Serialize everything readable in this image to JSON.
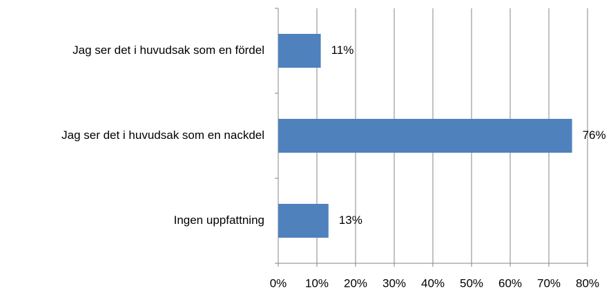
{
  "chart_data": {
    "type": "barh",
    "categories": [
      "Jag ser det i huvudsak som en fördel",
      "Jag ser det i huvudsak som en nackdel",
      "Ingen uppfattning"
    ],
    "values": [
      11,
      76,
      13
    ],
    "value_labels": [
      "11%",
      "76%",
      "13%"
    ],
    "color": "#4f81bd",
    "xlim": [
      0,
      80
    ],
    "xticks": [
      {
        "value": 0,
        "label": "0%"
      },
      {
        "value": 10,
        "label": "10%"
      },
      {
        "value": 20,
        "label": "20%"
      },
      {
        "value": 30,
        "label": "30%"
      },
      {
        "value": 40,
        "label": "40%"
      },
      {
        "value": 50,
        "label": "50%"
      },
      {
        "value": 60,
        "label": "60%"
      },
      {
        "value": 70,
        "label": "70%"
      },
      {
        "value": 80,
        "label": "80%"
      }
    ],
    "grid": true
  }
}
